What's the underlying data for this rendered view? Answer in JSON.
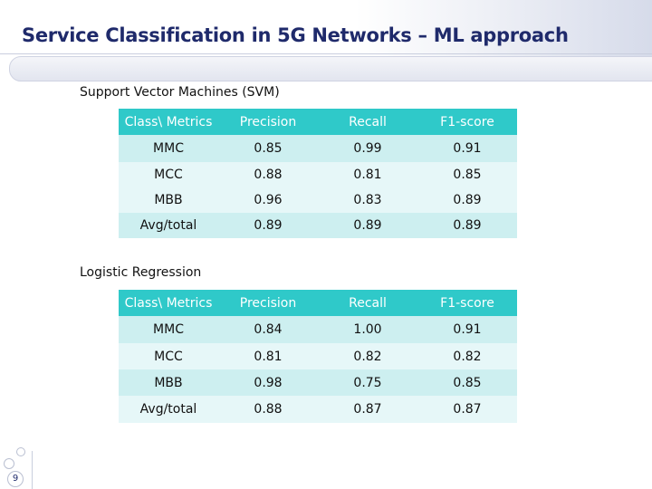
{
  "slide": {
    "title": "Service Classification in 5G Networks – ML approach",
    "page_number": "9"
  },
  "svm": {
    "label": "Support Vector Machines (SVM)",
    "headers": [
      "Class\\ Metrics",
      "Precision",
      "Recall",
      "F1-score"
    ],
    "rows": [
      [
        "MMC",
        "0.85",
        "0.99",
        "0.91"
      ],
      [
        "MCC",
        "0.88",
        "0.81",
        "0.85"
      ],
      [
        "MBB",
        "0.96",
        "0.83",
        "0.89"
      ],
      [
        "Avg/total",
        "0.89",
        "0.89",
        "0.89"
      ]
    ]
  },
  "logreg": {
    "label": "Logistic Regression",
    "headers": [
      "Class\\ Metrics",
      "Precision",
      "Recall",
      "F1-score"
    ],
    "rows": [
      [
        "MMC",
        "0.84",
        "1.00",
        "0.91"
      ],
      [
        "MCC",
        "0.81",
        "0.82",
        "0.82"
      ],
      [
        "MBB",
        "0.98",
        "0.75",
        "0.85"
      ],
      [
        "Avg/total",
        "0.88",
        "0.87",
        "0.87"
      ]
    ]
  },
  "colors": {
    "title": "#1f2a6b",
    "table_header": "#2fc9c9",
    "row_dark": "#cdeff0",
    "row_light": "#e6f7f8"
  }
}
